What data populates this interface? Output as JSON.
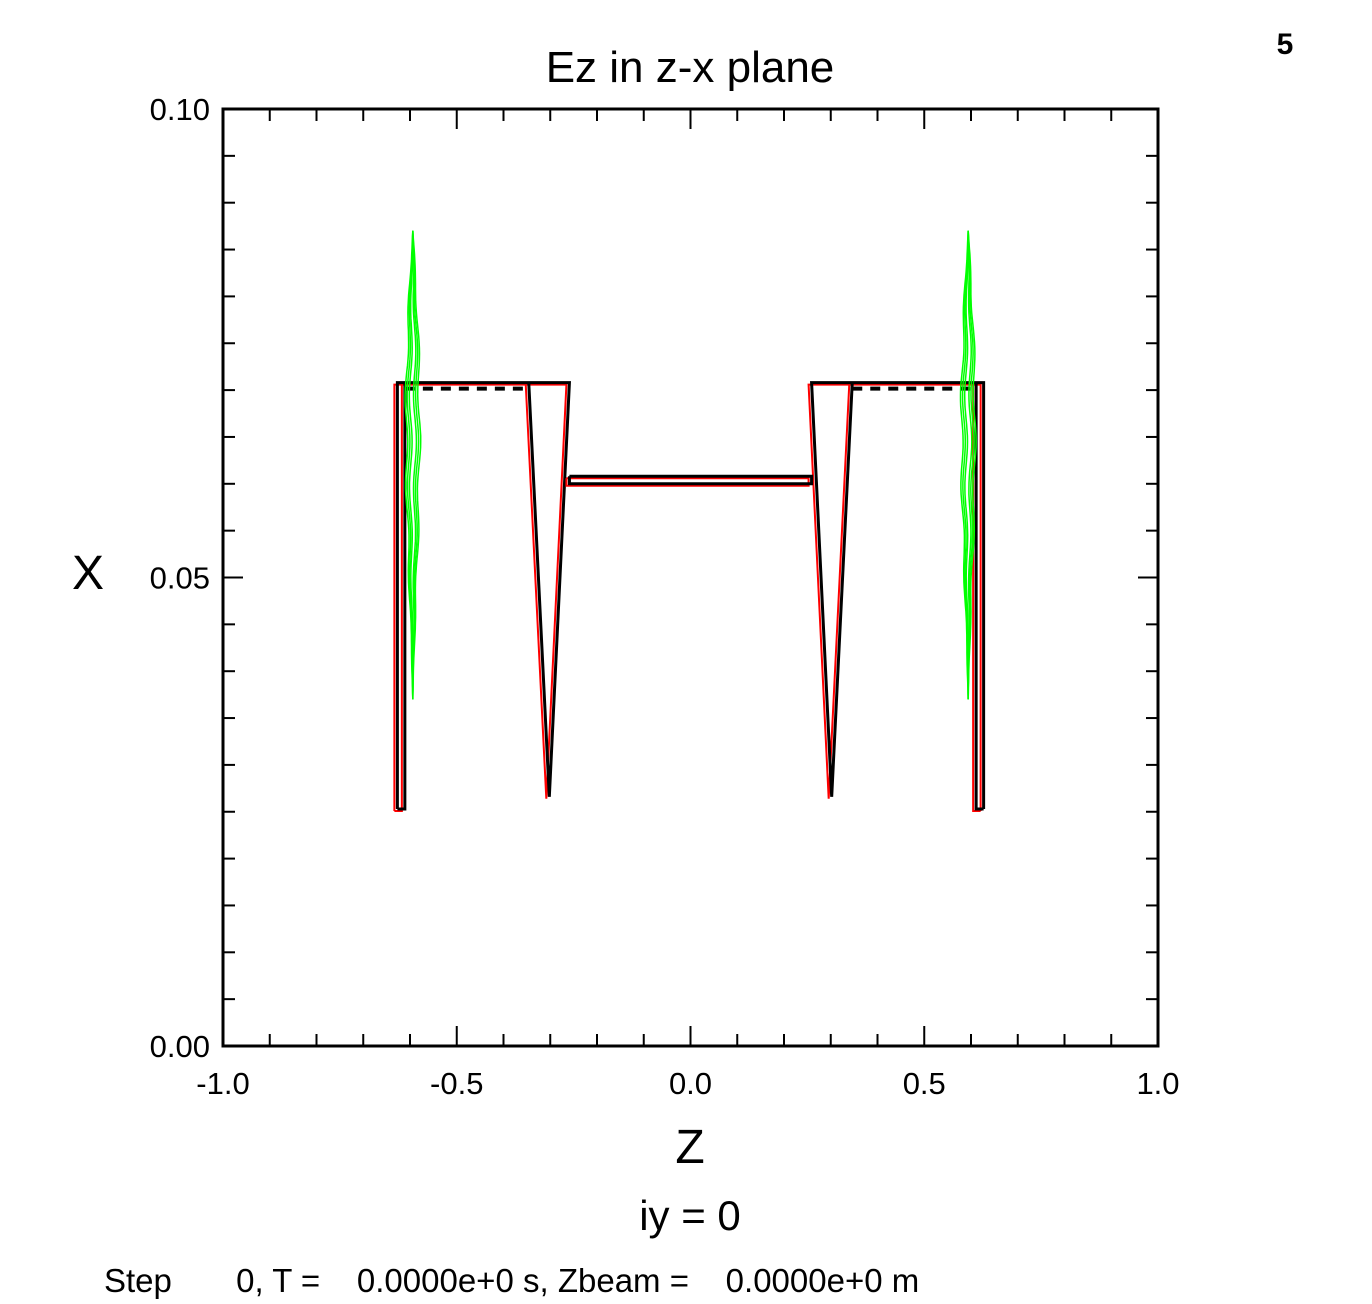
{
  "frame_number": "5",
  "chart_data": {
    "type": "line",
    "title": "Ez in z-x plane",
    "xlabel": "Z",
    "ylabel": "X",
    "xlim": [
      -1.0,
      1.0
    ],
    "ylim": [
      0.0,
      0.1
    ],
    "x_ticks": [
      "-1.0",
      "-0.5",
      "0.0",
      "0.5",
      "1.0"
    ],
    "y_ticks": [
      "0.00",
      "0.05",
      "0.10"
    ],
    "subtitle": "iy = 0",
    "colors": {
      "conductor": "#000000",
      "conductor_edge": "#ff0000",
      "field": "#00ff00"
    },
    "series": [
      {
        "role": "conductor outline (left)",
        "color": "#000000",
        "x": [
          -0.627,
          -0.627,
          -0.259,
          -0.302,
          -0.346,
          -0.611,
          -0.611,
          -0.627
        ],
        "y": [
          0.0253,
          0.0708,
          0.0708,
          0.0266,
          0.0708,
          0.0708,
          0.0253,
          0.0253
        ]
      },
      {
        "role": "conductor outline (right)",
        "color": "#000000",
        "x": [
          0.627,
          0.627,
          0.259,
          0.302,
          0.346,
          0.611,
          0.611,
          0.627
        ],
        "y": [
          0.0253,
          0.0708,
          0.0708,
          0.0266,
          0.0708,
          0.0708,
          0.0253,
          0.0253
        ]
      },
      {
        "role": "center plate",
        "color": "#000000",
        "x": [
          -0.259,
          0.259,
          0.259,
          -0.259,
          -0.259
        ],
        "y": [
          0.0608,
          0.0608,
          0.06,
          0.06,
          0.0608
        ]
      },
      {
        "role": "field contour (left, Ez)",
        "color": "#00ff00",
        "x_center": -0.594,
        "y_range": [
          0.037,
          0.087
        ]
      },
      {
        "role": "field contour (right, Ez)",
        "color": "#00ff00",
        "x_center": 0.594,
        "y_range": [
          0.037,
          0.087
        ]
      }
    ]
  },
  "footer": {
    "step_label": "Step",
    "step_value": "0",
    "t_label": "T =",
    "t_value": "0.0000e+0 s",
    "zbeam_label": "Zbeam =",
    "zbeam_value": "0.0000e+0 m"
  }
}
